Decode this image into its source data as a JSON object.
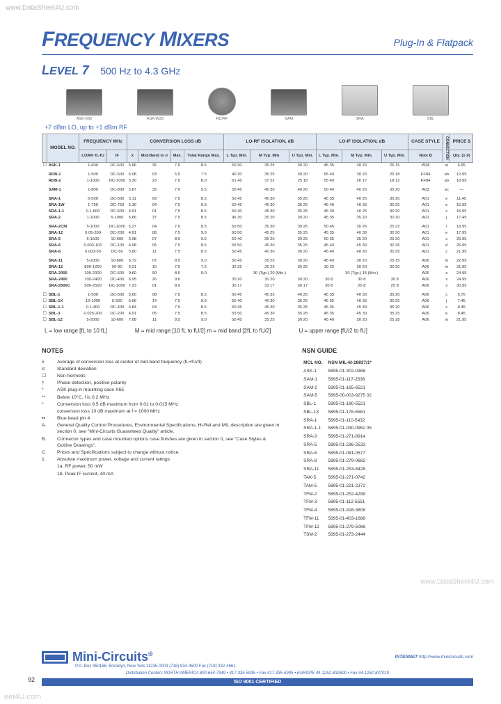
{
  "watermarks": {
    "top_left": "www.DataSheet4U.com",
    "bottom_right": "www.DataSheet4U.com",
    "bottom_left": "eet4U.com"
  },
  "header": {
    "title_pre": "F",
    "title_word1": "REQUENCY",
    "title_mid": " M",
    "title_word2": "IXERS",
    "subtitle": "Plug-In & Flatpack"
  },
  "level": {
    "pre": "L",
    "word": "EVEL",
    "num": " 7",
    "range": "500 Hz to 4.3 GHz"
  },
  "products": [
    {
      "label": "ASK-X65"
    },
    {
      "label": "ASK-W38"
    },
    {
      "label": "RC/RF"
    },
    {
      "label": "SAM"
    },
    {
      "label": "SRA"
    },
    {
      "label": "SBL"
    }
  ],
  "lo_note": "+7 dBm LO, up to +1 dBm RF",
  "table": {
    "group_headers": [
      "",
      "FREQUENCY MHz",
      "CONVERSION LOSS dB",
      "LO-RF ISOLATION, dB",
      "LO-IF ISOLATION, dB",
      "CASE STYLE",
      "",
      "PRICE $"
    ],
    "sub_headers": [
      "MODEL NO.",
      "LO/RF fL-fU",
      "IF",
      "x̄",
      "Mid-Band m σ",
      "Max.",
      "Total Range Max.",
      "L Typ. Min.",
      "M Typ. Min.",
      "U Typ. Min.",
      "L Typ. Min.",
      "M Typ. Min.",
      "U Typ. Min.",
      "Note B",
      "CONNECTION",
      "Qty. (1-9)"
    ],
    "rows": [
      [
        "☐",
        "ASK-1",
        "1-600",
        "DC-600",
        "5.66",
        "36",
        "7.0",
        "8.5",
        "50 30",
        "35 25",
        "30 20",
        "45 35",
        "30 20",
        "25 15",
        "W38",
        "w",
        "6.95"
      ],
      [
        "",
        "RDB-1",
        "1-500",
        "DC-500",
        "5.08",
        "03",
        "6.5",
        "7.5",
        "40 30",
        "35 25",
        "30 20",
        "55 40",
        "30 20",
        "25 18",
        "FF84",
        "ab",
        "12.95"
      ],
      [
        "",
        "RDB-2",
        "1-1000",
        "DC-1000",
        "5.30",
        "23",
        "7.0",
        "8.0",
        "61 45",
        "37 22",
        "25 18",
        "55 40",
        "26 17",
        "18 12",
        "FF84",
        "ab",
        "18.95"
      ],
      [
        "",
        "SAM-1",
        "1-800",
        "DC-800",
        "5.87",
        "35",
        "7.0",
        "9.5",
        "55 45",
        "45 30",
        "40 20",
        "50 40",
        "40 25",
        "35 20",
        "A03",
        "ac",
        "—"
      ],
      [
        "",
        "SRA-1",
        "5-500",
        "DC-500",
        "5.11",
        "09",
        "7.0",
        "8.5",
        "50 45",
        "45 30",
        "35 25",
        "45 35",
        "40 25",
        "30 20",
        "A01",
        "e",
        "11.45"
      ],
      [
        "",
        "SRA-1W",
        "1-750",
        "DC-750",
        "5.30",
        "04",
        "7.5",
        "9.5",
        "50 45",
        "45 30",
        "35 25",
        "45 40",
        "40 30",
        "30 25",
        "A01",
        "e",
        "15.95"
      ],
      [
        "",
        "SRA-1-1",
        "0.1-500",
        "DC-500",
        "4.91",
        "01",
        "7.5",
        "8.5",
        "50 40",
        "45 30",
        "35 25",
        "45 30",
        "40 25",
        "30 20",
        "A01",
        "c",
        "15.95"
      ],
      [
        "",
        "SRA-2",
        "1-1000",
        "5-1000",
        "5.66",
        "37",
        "7.5",
        "8.5",
        "45 30",
        "35 20",
        "30 20",
        "45 35",
        "35 20",
        "30 20",
        "A01",
        "j",
        "17.45"
      ],
      [
        "",
        "SRA-2CM",
        "5-1000",
        "DC-1000",
        "5.27",
        "04",
        "7.0",
        "8.5",
        "60 50",
        "35 30",
        "30 25",
        "50 45",
        "30 26",
        "25 22",
        "A01",
        "i",
        "19.95"
      ],
      [
        "",
        "SRA-12",
        "0.05-200",
        "DC-200",
        "4.91",
        "08",
        "7.5",
        "9.0",
        "60 50",
        "45 25",
        "35 25",
        "45 35",
        "40 30",
        "30 20",
        "A01",
        "e",
        "17.95"
      ],
      [
        "",
        "SRA-5",
        "5-1500",
        "10-600",
        "6.08",
        "07",
        "8.0",
        "9.5",
        "50 40",
        "35 20",
        "30 25",
        "50 35",
        "35 20",
        "25 20",
        "A01",
        "c",
        "26.95"
      ],
      [
        "",
        "SRA-6",
        "0.003-100",
        "DC-100",
        "4.98",
        "05",
        "7.5",
        "8.5",
        "55 50",
        "45 30",
        "35 25",
        "45 40",
        "45 30",
        "30 25",
        "A01",
        "d",
        "26.95"
      ],
      [
        "",
        "SRA-8",
        "0.003-50",
        "DC-50",
        "5.60",
        "11",
        "7.5",
        "8.5",
        "50 45",
        "40 30",
        "30 20",
        "45 40",
        "40 30",
        "30 25",
        "A01",
        "c",
        "21.95"
      ],
      [
        "",
        "SRA-11",
        "5-2000",
        "10-600",
        "6.72",
        "07",
        "8.5",
        "9.0",
        "50 45",
        "35 25",
        "30 20",
        "45 40",
        "30 20",
        "25 15",
        "A06",
        "m",
        "22.95"
      ],
      [
        "",
        "SRA-12",
        "800-1250",
        "50-90",
        "6.21",
        "10",
        "7.5",
        "7.5",
        "32 25",
        "35 25",
        "35 25",
        "30 20",
        "30 20",
        "30 20",
        "A06",
        "m",
        "31.95"
      ],
      [
        "",
        "SRA-2000",
        "100-2000",
        "DC-600",
        "9.60",
        "90",
        "8.5",
        "9.0",
        "",
        "30 (Typ.) 20 (Min.)",
        "",
        "",
        "30 (Typ.) 15 (Min.)",
        "",
        "A06",
        "s",
        "24.95"
      ],
      [
        "",
        "SRA-2400",
        "700-2400",
        "DC-400",
        "6.95",
        "26",
        "9.0",
        "",
        "30 20",
        "30 20",
        "30 20",
        "30 8",
        "30 8",
        "30 8",
        "A06",
        "s",
        "24.95"
      ],
      [
        "",
        "SRA-2500C",
        "500-2500",
        "DC-1000",
        "7.23",
        "01",
        "8.5",
        "",
        "30 17",
        "33 17",
        "30 17",
        "30 8",
        "25 8",
        "25 8",
        "A06",
        "s",
        "30.95"
      ],
      [
        "☐",
        "SBL-1",
        "1-500",
        "DC-500",
        "5.60",
        "08",
        "7.0",
        "8.5",
        "60 45",
        "45 35",
        "40 25",
        "45 35",
        "40 30",
        "35 20",
        "A06",
        "c",
        "5.75"
      ],
      [
        "☐",
        "SBL-1X",
        "10-1000",
        "5-500",
        "5.66",
        "14",
        "7.5",
        "9.0",
        "50 40",
        "40 30",
        "35 25",
        "45 35",
        "40 30",
        "30 25",
        "A06",
        "j",
        "7.45"
      ],
      [
        "☐",
        "SBL-1-1",
        "0.1-400",
        "DC-400",
        "4.84",
        "04",
        "7.0",
        "8.5",
        "60 45",
        "45 30",
        "35 25",
        "45 35",
        "45 30",
        "35 20",
        "A06",
        "c",
        "8.45"
      ],
      [
        "☐",
        "SBL-3",
        "0.025-200",
        "DC-200",
        "4.91",
        "05",
        "7.5",
        "8.5",
        "55 50",
        "45 30",
        "35 25",
        "45 35",
        "45 30",
        "35 25",
        "A06",
        "e",
        "8.45"
      ],
      [
        "☐",
        "SBL-1Z",
        "5-2000",
        "10-600",
        "7.08",
        "11",
        "8.5",
        "9.0",
        "50 45",
        "35 25",
        "30 20",
        "45 40",
        "30 20",
        "25 18",
        "A06",
        "m",
        "21.95"
      ]
    ]
  },
  "range_legend": {
    "low": "L = low range [fL to 10 fL]",
    "mid": "M = mid range [10 fL to fU/2]     m = mid band [2fL to fU/2]",
    "up": "U = upper range [fU/2 to fU]"
  },
  "notes": {
    "header": "NOTES",
    "items": [
      {
        "sym": "x̄",
        "txt": "Average of conversion loss at center of mid-band frequency (fL+fU/4)"
      },
      {
        "sym": "σ",
        "txt": "Standard deviation"
      },
      {
        "sym": "☐",
        "txt": "Non-hermetic"
      },
      {
        "sym": "†",
        "txt": "Phase detection, positive polarity"
      },
      {
        "sym": "*",
        "txt": "ASK plug-in mounting case X65"
      },
      {
        "sym": "**",
        "txt": "Below 10°C, f is 0.2 MHz"
      },
      {
        "sym": "*",
        "txt": "Conversion loss 9.5 dB maximum from 0.01 to 0.015 MHz"
      },
      {
        "sym": "",
        "txt": "conversion loss 10 dB maximum at f = 1000 MHz"
      },
      {
        "sym": "▪▪",
        "txt": "Blue bead pin 4"
      },
      {
        "sym": "A.",
        "txt": "General Quality Control Procedures, Environmental Specifications, Hi-Rel and MIL description are given in section 0, see \"Mini-Circuits Guarantees Quality\" article."
      },
      {
        "sym": "B.",
        "txt": "Connector types and case mounted options case finishes are given in section 0, see \"Case Styles & Outline Drawings\"."
      },
      {
        "sym": "C.",
        "txt": "Prices and Specifications subject to change without notice."
      },
      {
        "sym": "1.",
        "txt": "Absolute maximum power, voltage and current ratings"
      },
      {
        "sym": "",
        "txt": "1a.   RF power, 50 mW"
      },
      {
        "sym": "",
        "txt": "1b.   Peak IF current, 40 mA"
      }
    ]
  },
  "nsn": {
    "header": "NSN GUIDE",
    "col1": "MCL NO.",
    "col2": "NSN MIL-M-28837/1*",
    "rows": [
      [
        "ASK-1",
        "5895-01-302-0368"
      ],
      [
        "SAM-1",
        "5895-01-117-2538"
      ],
      [
        "SAM-2",
        "5895-01-165-6521"
      ],
      [
        "SAM-5",
        "5895-00-003-9275 02"
      ],
      [
        "SBL-1",
        "5895-01-180-5521"
      ],
      [
        "SBL-1X",
        "5895-01-178-6561"
      ],
      [
        "SRA-1",
        "5895-01-110-5432"
      ],
      [
        "SRA-1-1",
        "5895-01-030-0962 05"
      ],
      [
        "SRA-3",
        "5895-01-271-8914"
      ],
      [
        "SRA-5",
        "5895-01-236-2533"
      ],
      [
        "SRA-6",
        "5895-01-081-0577"
      ],
      [
        "SRA-8",
        "5895-01-279-0682"
      ],
      [
        "SRA-11",
        "5895-01-253-8428"
      ],
      [
        "TAK-5",
        "5895-01-271-0742"
      ],
      [
        "TAM-5",
        "5895-01-221-2372"
      ],
      [
        "TFM-2",
        "5895-01-252-4299"
      ],
      [
        "TFM-3",
        "5895-01-112-5551"
      ],
      [
        "TFM-4",
        "5895-01-316-3808"
      ],
      [
        "TFM-11",
        "5895-01-403-1688"
      ],
      [
        "TFM-12",
        "5895-01-279-5066"
      ],
      [
        "TSM-2",
        "5895-01-273-2444"
      ]
    ]
  },
  "footer": {
    "brand": "Mini-Circuits",
    "internet_lbl": "INTERNET",
    "internet": "http://www.minicircuits.com",
    "addr": "P.O. Box 350166, Brooklyn, New York 11235-0003 (718) 934-4500 Fax (718) 332-4661",
    "dist": "Distribution Centers NORTH AMERICA 800-654-7949 • 417-335-5935 • Fax 417-335-5945 • EUROPE 44-1252-832600 • Fax 44-1252-837010",
    "iso": "ISO 9001 CERTIFIED"
  },
  "page_num": "92"
}
